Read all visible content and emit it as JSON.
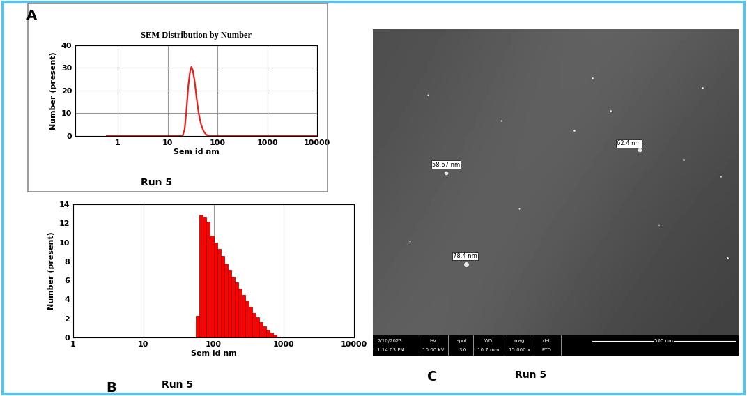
{
  "chart_data": [
    {
      "type": "line",
      "panel": "A",
      "title": "SEM Distribution by Number",
      "x_label": "Sem id nm",
      "y_label": "Number (present)",
      "caption": "Run 5",
      "x": [
        0.6,
        1,
        2,
        5,
        10,
        15,
        20,
        22,
        24,
        26,
        28,
        30,
        32,
        35,
        38,
        42,
        47,
        53,
        60,
        70,
        100,
        1000,
        10000
      ],
      "values": [
        0,
        0,
        0,
        0,
        0,
        0,
        0,
        3,
        12,
        22,
        28,
        30.5,
        29,
        24,
        17,
        10,
        5,
        2,
        0.5,
        0,
        0,
        0,
        0
      ],
      "color": "#e8201c",
      "log": "x",
      "xlim": [
        0.14,
        10000
      ],
      "xticks": [
        1,
        10,
        100,
        1000,
        10000
      ],
      "ylim": [
        0,
        40
      ],
      "yticks": [
        0,
        10,
        20,
        30,
        40
      ],
      "grid": true
    },
    {
      "type": "histogram",
      "panel": "B",
      "x_label": "Sem id nm",
      "y_label": "Number (present)",
      "caption": "Run 5",
      "bins": [
        56.2,
        63.1,
        70.8,
        79.4,
        89.1,
        100,
        112.2,
        125.9,
        141.3,
        158.5,
        177.8,
        199.5,
        223.9,
        251.2,
        281.8,
        316.2,
        354.8,
        398.1,
        446.7,
        501.2,
        562.3,
        631.0,
        707.9,
        794.3,
        891.3
      ],
      "counts": [
        2.3,
        12.9,
        12.7,
        12.2,
        10.7,
        10.0,
        9.3,
        8.6,
        7.8,
        7.1,
        6.4,
        5.8,
        5.1,
        4.5,
        3.8,
        3.2,
        2.6,
        2.1,
        1.6,
        1.2,
        0.8,
        0.5,
        0.3,
        0.1
      ],
      "color": "#ff0000",
      "log": "x",
      "xlim": [
        1,
        10000
      ],
      "xticks": [
        1,
        10,
        100,
        1000,
        10000
      ],
      "ylim": [
        0,
        14
      ],
      "yticks": [
        0,
        2,
        4,
        6,
        8,
        10,
        12,
        14
      ],
      "grid": "x"
    }
  ],
  "image": {
    "panel": "C",
    "caption": "Run 5",
    "annotations": [
      "58.67 nm",
      "62.4 nm",
      "78.4 nm"
    ],
    "info_bar": {
      "date": "2/10/2023",
      "time": "1:14:03 PM",
      "fields": [
        {
          "name": "HV",
          "value": "10.00 kV"
        },
        {
          "name": "spot",
          "value": "3.0"
        },
        {
          "name": "WD",
          "value": "10.7 mm"
        },
        {
          "name": "mag",
          "value": "15 000 x"
        },
        {
          "name": "det",
          "value": "ETD"
        }
      ],
      "scale_bar": "500 nm"
    }
  }
}
